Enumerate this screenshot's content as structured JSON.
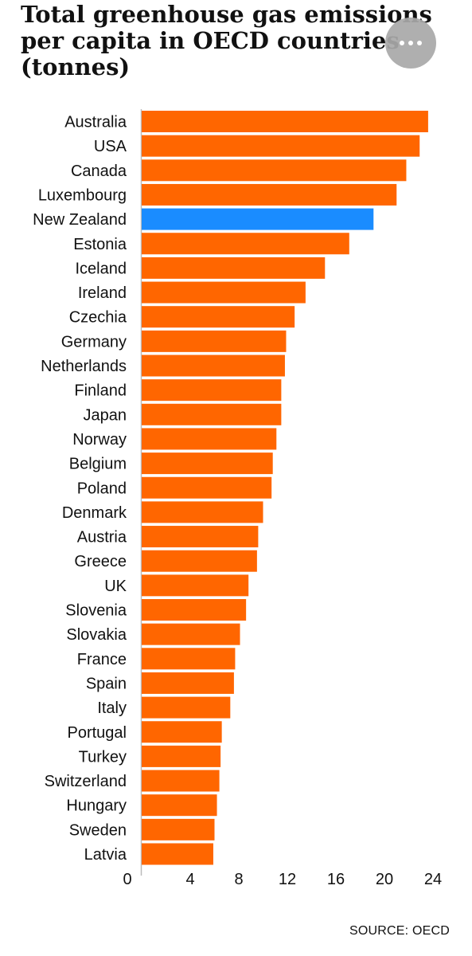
{
  "title_lines": [
    "Total greenhouse gas emissions",
    "per capita in OECD countries",
    "(tonnes)"
  ],
  "more_button": {
    "icon": "more-horizontal-icon"
  },
  "source": "SOURCE: OECD",
  "colors": {
    "bar": "#ff6600",
    "highlight": "#1a8cff",
    "axis": "#bbbbbb"
  },
  "chart_data": {
    "type": "bar",
    "orientation": "horizontal",
    "title": "Total greenhouse gas emissions per capita in OECD countries (tonnes)",
    "categories": [
      "Australia",
      "USA",
      "Canada",
      "Luxembourg",
      "New Zealand",
      "Estonia",
      "Iceland",
      "Ireland",
      "Czechia",
      "Germany",
      "Netherlands",
      "Finland",
      "Japan",
      "Norway",
      "Belgium",
      "Poland",
      "Denmark",
      "Austria",
      "Greece",
      "UK",
      "Slovenia",
      "Slovakia",
      "France",
      "Spain",
      "Italy",
      "Portugal",
      "Turkey",
      "Switzerland",
      "Hungary",
      "Sweden",
      "Latvia"
    ],
    "values": [
      23.6,
      22.9,
      21.8,
      21.0,
      19.1,
      17.1,
      15.1,
      13.5,
      12.6,
      11.9,
      11.8,
      11.5,
      11.5,
      11.1,
      10.8,
      10.7,
      10.0,
      9.6,
      9.5,
      8.8,
      8.6,
      8.1,
      7.7,
      7.6,
      7.3,
      6.6,
      6.5,
      6.4,
      6.2,
      6.0,
      5.9
    ],
    "highlight": "New Zealand",
    "xticks": [
      0,
      4,
      8,
      12,
      16,
      20,
      24
    ],
    "xlim": [
      0,
      24
    ],
    "grid": false,
    "legend": "none",
    "source": "SOURCE: OECD"
  }
}
